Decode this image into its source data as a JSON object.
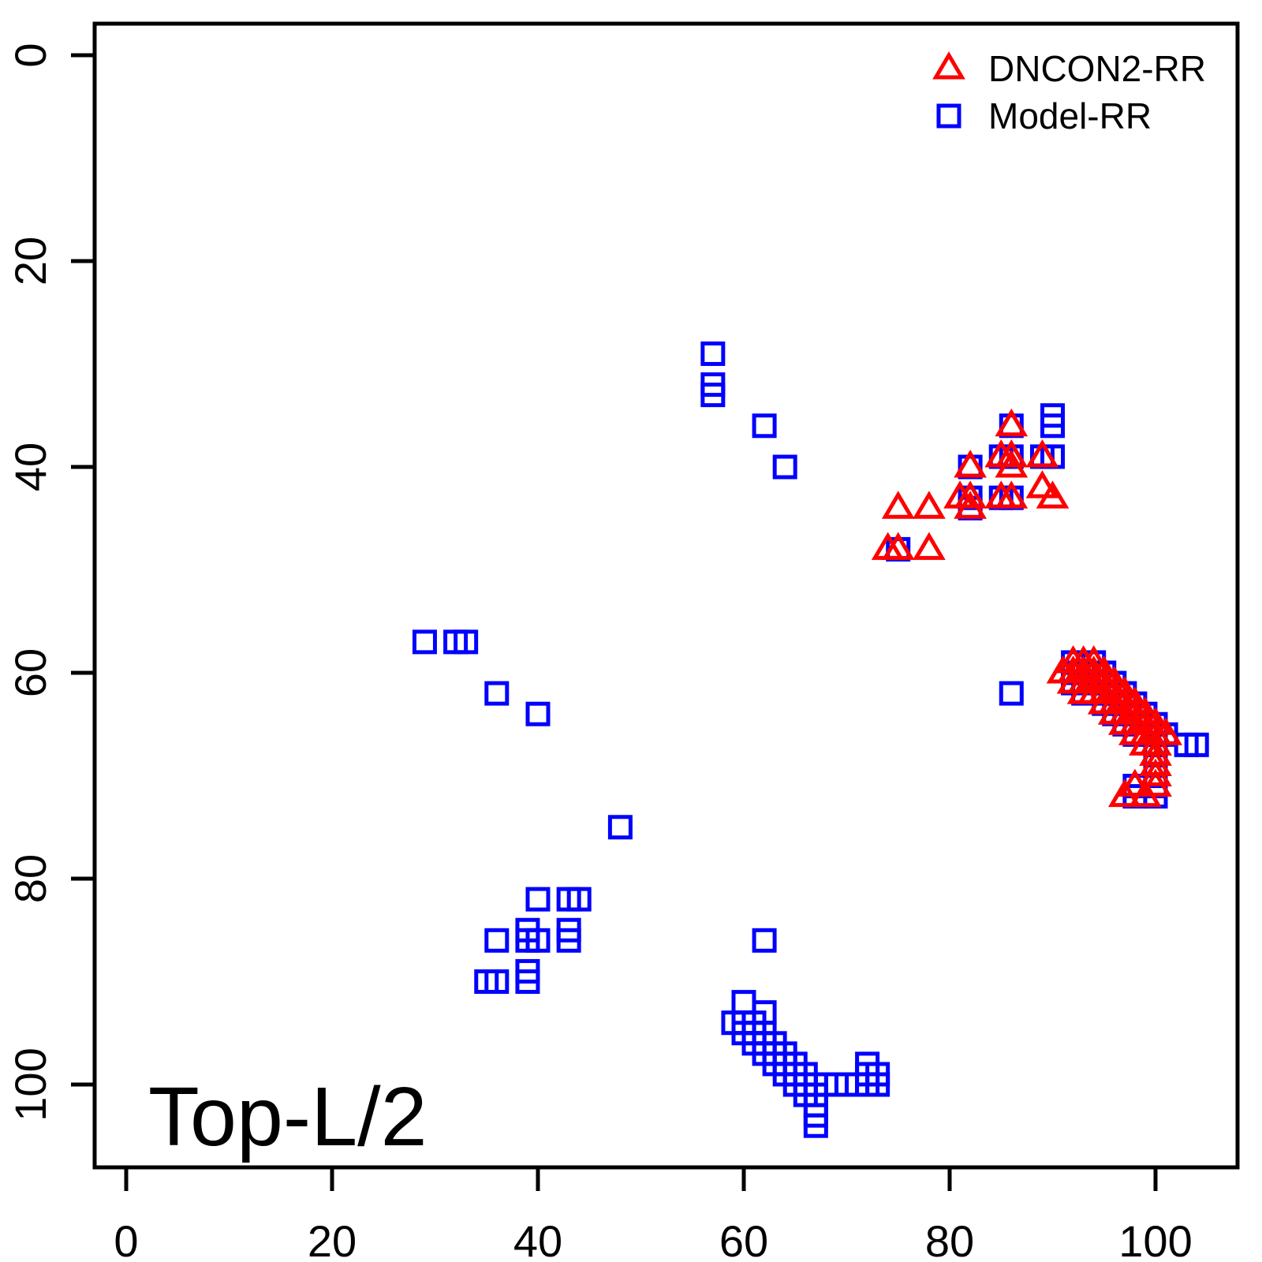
{
  "chart_data": {
    "type": "scatter",
    "title": "Top-L/2",
    "xlabel": "",
    "ylabel": "",
    "x_ticks": [
      0,
      20,
      40,
      60,
      80,
      100
    ],
    "y_ticks": [
      0,
      20,
      40,
      60,
      80,
      100
    ],
    "x_range": [
      -3,
      108
    ],
    "y_range": [
      -3,
      108
    ],
    "y_axis_inverted": true,
    "grid": false,
    "legend_position": "top-right",
    "series": [
      {
        "name": "DNCON2-RR",
        "marker": "triangle",
        "color": "#FF0000",
        "points": [
          [
            86,
            36
          ],
          [
            85,
            39
          ],
          [
            86,
            39
          ],
          [
            89,
            39
          ],
          [
            82,
            40
          ],
          [
            86,
            40
          ],
          [
            89,
            42
          ],
          [
            81,
            43
          ],
          [
            82,
            43
          ],
          [
            85,
            43
          ],
          [
            86,
            43
          ],
          [
            90,
            43
          ],
          [
            75,
            44
          ],
          [
            78,
            44
          ],
          [
            82,
            44
          ],
          [
            74,
            48
          ],
          [
            75,
            48
          ],
          [
            78,
            48
          ],
          [
            92,
            59
          ],
          [
            93,
            59
          ],
          [
            94,
            59
          ],
          [
            91,
            60
          ],
          [
            92,
            60
          ],
          [
            93,
            60
          ],
          [
            94,
            60
          ],
          [
            95,
            60
          ],
          [
            92,
            61
          ],
          [
            93,
            61
          ],
          [
            94,
            61
          ],
          [
            95,
            61
          ],
          [
            96,
            61
          ],
          [
            93,
            62
          ],
          [
            94,
            62
          ],
          [
            95,
            62
          ],
          [
            96,
            62
          ],
          [
            97,
            62
          ],
          [
            95,
            63
          ],
          [
            96,
            63
          ],
          [
            97,
            63
          ],
          [
            98,
            63
          ],
          [
            96,
            64
          ],
          [
            97,
            64
          ],
          [
            98,
            64
          ],
          [
            99,
            64
          ],
          [
            97,
            65
          ],
          [
            98,
            65
          ],
          [
            99,
            65
          ],
          [
            100,
            65
          ],
          [
            98,
            66
          ],
          [
            99,
            66
          ],
          [
            100,
            66
          ],
          [
            101,
            66
          ],
          [
            99,
            67
          ],
          [
            100,
            67
          ],
          [
            100,
            68
          ],
          [
            100,
            69
          ],
          [
            100,
            70
          ],
          [
            98,
            71
          ],
          [
            100,
            71
          ],
          [
            97,
            72
          ],
          [
            99,
            72
          ]
        ]
      },
      {
        "name": "Model-RR",
        "marker": "square",
        "color": "#0000FF",
        "points": [
          [
            57,
            29
          ],
          [
            57,
            32
          ],
          [
            57,
            33
          ],
          [
            62,
            36
          ],
          [
            64,
            40
          ],
          [
            90,
            35
          ],
          [
            90,
            36
          ],
          [
            86,
            36
          ],
          [
            85,
            39
          ],
          [
            86,
            39
          ],
          [
            89,
            39
          ],
          [
            90,
            39
          ],
          [
            82,
            40
          ],
          [
            82,
            43
          ],
          [
            85,
            43
          ],
          [
            86,
            43
          ],
          [
            82,
            44
          ],
          [
            75,
            48
          ],
          [
            29,
            57
          ],
          [
            32,
            57
          ],
          [
            33,
            57
          ],
          [
            36,
            62
          ],
          [
            40,
            64
          ],
          [
            86,
            62
          ],
          [
            92,
            59
          ],
          [
            94,
            59
          ],
          [
            92,
            60
          ],
          [
            93,
            60
          ],
          [
            95,
            60
          ],
          [
            92,
            61
          ],
          [
            94,
            61
          ],
          [
            96,
            61
          ],
          [
            93,
            62
          ],
          [
            95,
            62
          ],
          [
            97,
            62
          ],
          [
            95,
            63
          ],
          [
            98,
            63
          ],
          [
            96,
            64
          ],
          [
            99,
            64
          ],
          [
            97,
            65
          ],
          [
            100,
            65
          ],
          [
            98,
            66
          ],
          [
            101,
            66
          ],
          [
            100,
            67
          ],
          [
            103,
            67
          ],
          [
            104,
            67
          ],
          [
            100,
            68
          ],
          [
            100,
            69
          ],
          [
            100,
            70
          ],
          [
            98,
            71
          ],
          [
            100,
            71
          ],
          [
            98,
            72
          ],
          [
            100,
            72
          ],
          [
            48,
            75
          ],
          [
            40,
            82
          ],
          [
            43,
            82
          ],
          [
            44,
            82
          ],
          [
            39,
            85
          ],
          [
            43,
            85
          ],
          [
            36,
            86
          ],
          [
            39,
            86
          ],
          [
            40,
            86
          ],
          [
            43,
            86
          ],
          [
            39,
            89
          ],
          [
            35,
            90
          ],
          [
            36,
            90
          ],
          [
            39,
            90
          ],
          [
            62,
            86
          ],
          [
            60,
            92
          ],
          [
            62,
            93
          ],
          [
            59,
            94
          ],
          [
            60,
            94
          ],
          [
            61,
            94
          ],
          [
            60,
            95
          ],
          [
            61,
            95
          ],
          [
            62,
            95
          ],
          [
            61,
            96
          ],
          [
            62,
            96
          ],
          [
            63,
            96
          ],
          [
            62,
            97
          ],
          [
            63,
            97
          ],
          [
            64,
            97
          ],
          [
            63,
            98
          ],
          [
            64,
            98
          ],
          [
            65,
            98
          ],
          [
            72,
            98
          ],
          [
            64,
            99
          ],
          [
            65,
            99
          ],
          [
            66,
            99
          ],
          [
            72,
            99
          ],
          [
            73,
            99
          ],
          [
            65,
            100
          ],
          [
            66,
            100
          ],
          [
            67,
            100
          ],
          [
            68,
            100
          ],
          [
            69,
            100
          ],
          [
            70,
            100
          ],
          [
            71,
            100
          ],
          [
            72,
            100
          ],
          [
            73,
            100
          ],
          [
            66,
            101
          ],
          [
            67,
            101
          ],
          [
            67,
            102
          ],
          [
            67,
            103
          ],
          [
            67,
            104
          ]
        ]
      }
    ]
  },
  "legend": {
    "items": [
      {
        "label": "DNCON2-RR"
      },
      {
        "label": "Model-RR"
      }
    ]
  },
  "annotation": {
    "label": "Top-L/2"
  }
}
